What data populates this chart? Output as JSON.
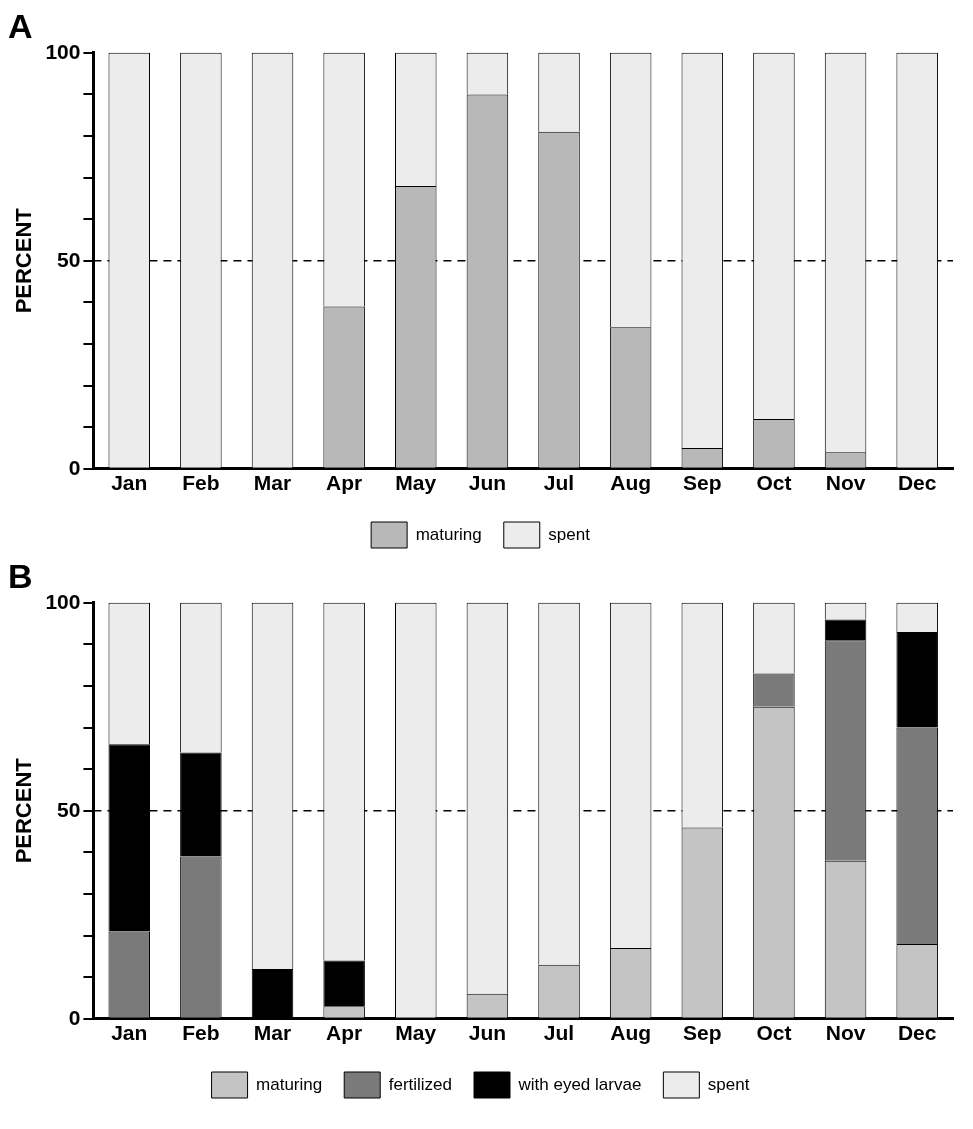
{
  "chart_data": [
    {
      "type": "bar",
      "title": "A",
      "ylabel": "PERCENT",
      "categories": [
        "Jan",
        "Feb",
        "Mar",
        "Apr",
        "May",
        "Jun",
        "Jul",
        "Aug",
        "Sep",
        "Oct",
        "Nov",
        "Dec"
      ],
      "stacked": true,
      "ylim": [
        0,
        100
      ],
      "yticks": [
        0,
        {
          "value": 10,
          "label": null
        },
        {
          "value": 20,
          "label": null
        },
        {
          "value": 30,
          "label": null
        },
        {
          "value": 40,
          "label": null
        },
        50,
        {
          "value": 60,
          "label": null
        },
        {
          "value": 70,
          "label": null
        },
        {
          "value": 80,
          "label": null
        },
        {
          "value": 90,
          "label": null
        },
        100
      ],
      "grid": false,
      "legend": "bottom",
      "ref_lines": [
        {
          "axis": "y",
          "value": 50,
          "line_style": "dashed",
          "color": "#000000"
        }
      ],
      "series": [
        {
          "name": "maturing",
          "color": "#b8b8b8",
          "values": [
            0,
            0,
            0,
            39,
            68,
            90,
            81,
            34,
            5,
            12,
            4,
            0
          ]
        },
        {
          "name": "spent",
          "color": "#ececec",
          "values": [
            100,
            100,
            100,
            61,
            32,
            10,
            19,
            66,
            95,
            88,
            96,
            100
          ]
        }
      ]
    },
    {
      "type": "bar",
      "title": "B",
      "ylabel": "PERCENT",
      "categories": [
        "Jan",
        "Feb",
        "Mar",
        "Apr",
        "May",
        "Jun",
        "Jul",
        "Aug",
        "Sep",
        "Oct",
        "Nov",
        "Dec"
      ],
      "stacked": true,
      "ylim": [
        0,
        100
      ],
      "yticks": [
        0,
        {
          "value": 10,
          "label": null
        },
        {
          "value": 20,
          "label": null
        },
        {
          "value": 30,
          "label": null
        },
        {
          "value": 40,
          "label": null
        },
        50,
        {
          "value": 60,
          "label": null
        },
        {
          "value": 70,
          "label": null
        },
        {
          "value": 80,
          "label": null
        },
        {
          "value": 90,
          "label": null
        },
        100
      ],
      "grid": false,
      "legend": "bottom",
      "ref_lines": [
        {
          "axis": "y",
          "value": 50,
          "line_style": "dashed",
          "color": "#000000"
        }
      ],
      "series": [
        {
          "name": "maturing",
          "color": "#c4c4c4",
          "values": [
            0,
            0,
            0,
            3,
            0,
            6,
            13,
            17,
            46,
            75,
            38,
            18
          ]
        },
        {
          "name": "fertilized",
          "color": "#7a7a7a",
          "values": [
            21,
            39,
            0,
            0,
            0,
            0,
            0,
            0,
            0,
            8,
            53,
            52
          ]
        },
        {
          "name": "with eyed larvae",
          "color": "#000000",
          "values": [
            45,
            25,
            12,
            11,
            0,
            0,
            0,
            0,
            0,
            0,
            5,
            23
          ]
        },
        {
          "name": "spent",
          "color": "#ececec",
          "values": [
            34,
            36,
            88,
            86,
            100,
            94,
            87,
            83,
            54,
            17,
            4,
            7
          ]
        }
      ]
    }
  ]
}
